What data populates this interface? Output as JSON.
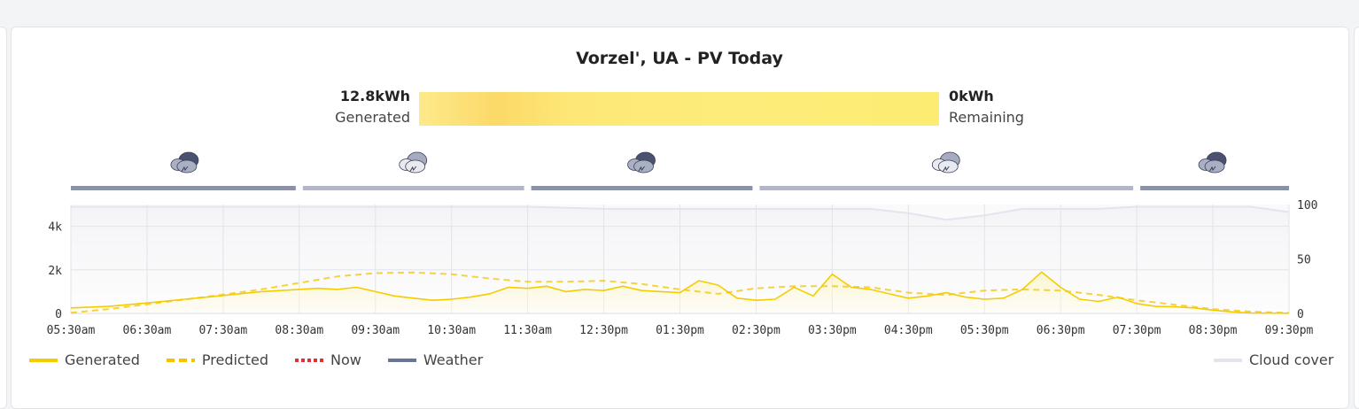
{
  "chart_data": {
    "type": "line",
    "title": "Vorzel', UA - PV Today",
    "summary": {
      "generated_value": "12.8kWh",
      "generated_label": "Generated",
      "remaining_value": "0kWh",
      "remaining_label": "Remaining",
      "generated_fraction": 1.0
    },
    "x_ticks": [
      "05:30am",
      "06:30am",
      "07:30am",
      "08:30am",
      "09:30am",
      "10:30am",
      "11:30am",
      "12:30pm",
      "01:30pm",
      "02:30pm",
      "03:30pm",
      "04:30pm",
      "05:30pm",
      "06:30pm",
      "07:30pm",
      "08:30pm",
      "09:30pm"
    ],
    "y_ticks": [
      "0",
      "2k",
      "4k"
    ],
    "y2_ticks": [
      "0",
      "50",
      "100"
    ],
    "ylim": [
      0,
      5000
    ],
    "y2lim": [
      0,
      100
    ],
    "grid": true,
    "legend_position": "bottom",
    "series": [
      {
        "name": "Generated",
        "axis": "left",
        "color": "#f5cc00",
        "style": "solid",
        "x": [
          5.5,
          6.0,
          6.5,
          7.0,
          7.5,
          8.0,
          8.5,
          8.75,
          9.0,
          9.25,
          9.5,
          9.75,
          10.0,
          10.25,
          10.5,
          10.75,
          11.0,
          11.25,
          11.5,
          11.75,
          12.0,
          12.25,
          12.5,
          12.75,
          13.0,
          13.25,
          13.5,
          13.75,
          14.0,
          14.25,
          14.5,
          14.75,
          15.0,
          15.25,
          15.5,
          15.75,
          16.0,
          16.25,
          16.5,
          16.75,
          17.0,
          17.25,
          17.5,
          17.75,
          18.0,
          18.25,
          18.5,
          18.75,
          19.0,
          19.25,
          19.5,
          19.75,
          20.0,
          20.25,
          20.5,
          20.75,
          21.0,
          21.5
        ],
        "y": [
          250,
          320,
          480,
          650,
          820,
          1000,
          1100,
          1150,
          1100,
          1200,
          1000,
          800,
          700,
          600,
          650,
          750,
          900,
          1200,
          1150,
          1250,
          1000,
          1100,
          1050,
          1250,
          1050,
          1000,
          950,
          1500,
          1300,
          700,
          600,
          650,
          1200,
          800,
          1800,
          1200,
          1100,
          900,
          700,
          800,
          950,
          750,
          650,
          700,
          1100,
          1900,
          1200,
          650,
          550,
          750,
          450,
          320,
          300,
          250,
          150,
          70,
          20,
          10
        ]
      },
      {
        "name": "Predicted",
        "axis": "left",
        "color": "#f5c400",
        "style": "dashed",
        "x": [
          5.5,
          6.0,
          6.5,
          7.0,
          7.5,
          8.0,
          8.5,
          9.0,
          9.5,
          10.0,
          10.5,
          11.0,
          11.5,
          12.0,
          12.5,
          13.0,
          13.5,
          14.0,
          14.5,
          15.0,
          15.5,
          16.0,
          16.5,
          17.0,
          17.5,
          18.0,
          18.5,
          19.0,
          19.5,
          20.0,
          20.5,
          21.0,
          21.5
        ],
        "y": [
          30,
          200,
          420,
          640,
          860,
          1100,
          1400,
          1700,
          1850,
          1880,
          1800,
          1600,
          1450,
          1450,
          1500,
          1350,
          1100,
          900,
          1150,
          1250,
          1250,
          1200,
          950,
          850,
          1050,
          1100,
          1050,
          850,
          600,
          400,
          200,
          80,
          20
        ]
      },
      {
        "name": "Cloud cover",
        "axis": "right",
        "color": "#e3e4ee",
        "style": "area",
        "x": [
          5.5,
          11.5,
          12.5,
          13.5,
          14.5,
          15.0,
          15.5,
          16.0,
          16.5,
          17.0,
          17.5,
          18.0,
          18.5,
          19.0,
          19.5,
          20.0,
          20.5,
          21.0,
          21.5
        ],
        "y": [
          98,
          98,
          96,
          96,
          96,
          96,
          96,
          96,
          92,
          86,
          90,
          96,
          96,
          96,
          98,
          98,
          98,
          98,
          93
        ]
      }
    ],
    "legend": [
      {
        "name": "Generated",
        "color": "#f5cc00",
        "style": "solid"
      },
      {
        "name": "Predicted",
        "color": "#f5c400",
        "style": "dashed"
      },
      {
        "name": "Now",
        "color": "#e0303a",
        "style": "dotted"
      },
      {
        "name": "Weather",
        "color": "#6a7494",
        "style": "solid"
      },
      {
        "name": "Cloud cover",
        "color": "#e3e4ee",
        "style": "solid"
      }
    ],
    "weather": [
      {
        "from": 5.5,
        "to": 8.5,
        "icon": "storm-cloud-icon",
        "color": "#8b91a6",
        "icon_tone": "dark"
      },
      {
        "from": 8.5,
        "to": 11.5,
        "icon": "cloud-icon",
        "color": "#b3b6c9",
        "icon_tone": "light"
      },
      {
        "from": 11.5,
        "to": 14.5,
        "icon": "storm-cloud-icon",
        "color": "#8b91a6",
        "icon_tone": "dark"
      },
      {
        "from": 14.5,
        "to": 19.5,
        "icon": "cloud-icon",
        "color": "#b3b6c9",
        "icon_tone": "light"
      },
      {
        "from": 19.5,
        "to": 21.5,
        "icon": "storm-cloud-icon",
        "color": "#8b91a6",
        "icon_tone": "dark"
      }
    ]
  }
}
